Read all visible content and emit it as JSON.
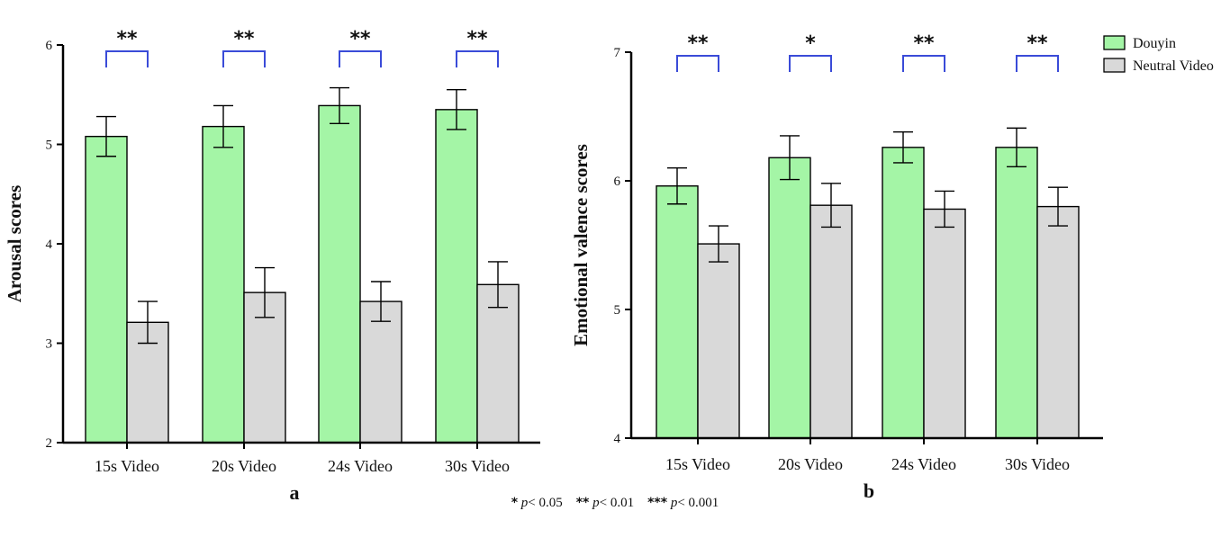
{
  "colors": {
    "douyin": "#a4f5a6",
    "neutral": "#d9d9d9",
    "bracket": "#3a4bd8",
    "axis": "#000000"
  },
  "legend": {
    "items": [
      "Douyin",
      "Neutral Video"
    ],
    "placement": "top-right"
  },
  "footnote": [
    {
      "stars": "*",
      "p": "p",
      "cmp": "< 0.05"
    },
    {
      "stars": "**",
      "p": "p",
      "cmp": "< 0.01"
    },
    {
      "stars": "***",
      "p": "p",
      "cmp": "< 0.001"
    }
  ],
  "chart_data": [
    {
      "type": "bar",
      "panel_label": "a",
      "ylabel": "Arousal scores",
      "ylim": [
        2,
        6
      ],
      "yticks": [
        2,
        3,
        4,
        5,
        6
      ],
      "categories": [
        "15s Video",
        "20s Video",
        "24s Video",
        "30s Video"
      ],
      "series": [
        {
          "name": "Douyin",
          "values": [
            5.08,
            5.18,
            5.39,
            5.35
          ],
          "errors": [
            0.2,
            0.21,
            0.18,
            0.2
          ]
        },
        {
          "name": "Neutral Video",
          "values": [
            3.21,
            3.51,
            3.42,
            3.59
          ],
          "errors": [
            0.21,
            0.25,
            0.2,
            0.23
          ]
        }
      ],
      "significance": [
        "**",
        "**",
        "**",
        "**"
      ]
    },
    {
      "type": "bar",
      "panel_label": "b",
      "ylabel": "Emotional valence scores",
      "ylim": [
        4,
        7
      ],
      "yticks": [
        4,
        5,
        6,
        7
      ],
      "categories": [
        "15s Video",
        "20s Video",
        "24s Video",
        "30s Video"
      ],
      "series": [
        {
          "name": "Douyin",
          "values": [
            5.96,
            6.18,
            6.26,
            6.26
          ],
          "errors": [
            0.14,
            0.17,
            0.12,
            0.15
          ]
        },
        {
          "name": "Neutral Video",
          "values": [
            5.51,
            5.81,
            5.78,
            5.8
          ],
          "errors": [
            0.14,
            0.17,
            0.14,
            0.15
          ]
        }
      ],
      "significance": [
        "**",
        "*",
        "**",
        "**"
      ]
    }
  ]
}
